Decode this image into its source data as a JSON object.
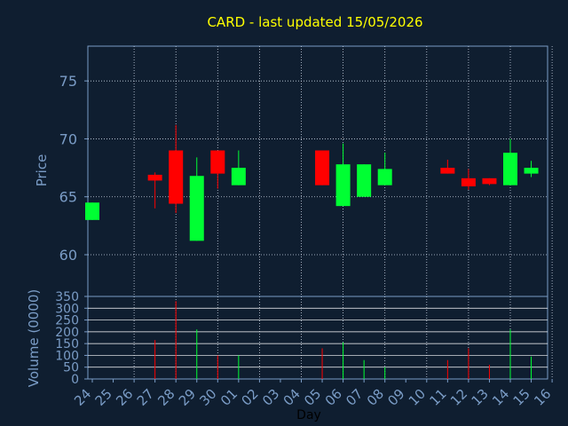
{
  "chart_data": [
    {
      "type": "candlestick",
      "title": "CARD - last updated 15/05/2026",
      "ylabel": "Price",
      "ylim": [
        56.4,
        78
      ],
      "yticks": [
        60,
        65,
        70,
        75
      ],
      "grid": true,
      "colors": {
        "up": "#00ff33",
        "down": "#ff0000",
        "title": "#ffff00",
        "axis": "#7a9cc6",
        "background": "#0f1e30"
      },
      "categories": [
        "24",
        "25",
        "26",
        "27",
        "28",
        "29",
        "30",
        "01",
        "02",
        "03",
        "04",
        "05",
        "06",
        "07",
        "08",
        "09",
        "10",
        "11",
        "12",
        "13",
        "14",
        "15",
        "16"
      ],
      "candles": [
        {
          "day": "24",
          "open": 63.0,
          "close": 64.5,
          "high": 64.5,
          "low": 63.0
        },
        {
          "day": "27",
          "open": 66.9,
          "close": 66.4,
          "high": 67.1,
          "low": 64.0
        },
        {
          "day": "28",
          "open": 69.0,
          "close": 64.4,
          "high": 71.2,
          "low": 63.6
        },
        {
          "day": "29",
          "open": 61.2,
          "close": 66.8,
          "high": 68.4,
          "low": 61.2
        },
        {
          "day": "30",
          "open": 69.0,
          "close": 67.0,
          "high": 69.0,
          "low": 65.7
        },
        {
          "day": "01",
          "open": 66.0,
          "close": 67.5,
          "high": 69.0,
          "low": 66.0
        },
        {
          "day": "05",
          "open": 69.0,
          "close": 66.0,
          "high": 69.0,
          "low": 66.0
        },
        {
          "day": "06",
          "open": 64.2,
          "close": 67.8,
          "high": 69.6,
          "low": 64.2
        },
        {
          "day": "07",
          "open": 65.0,
          "close": 67.8,
          "high": 67.8,
          "low": 65.0
        },
        {
          "day": "08",
          "open": 66.0,
          "close": 67.4,
          "high": 68.8,
          "low": 66.0
        },
        {
          "day": "11",
          "open": 67.5,
          "close": 67.0,
          "high": 68.2,
          "low": 67.0
        },
        {
          "day": "12",
          "open": 66.6,
          "close": 65.9,
          "high": 67.4,
          "low": 65.6
        },
        {
          "day": "13",
          "open": 66.6,
          "close": 66.1,
          "high": 66.6,
          "low": 66.0
        },
        {
          "day": "14",
          "open": 66.0,
          "close": 68.8,
          "high": 70.0,
          "low": 66.0
        },
        {
          "day": "15",
          "open": 67.0,
          "close": 67.5,
          "high": 68.1,
          "low": 66.7
        }
      ]
    },
    {
      "type": "bar",
      "ylabel": "Volume (0000)",
      "xlabel": "Day",
      "ylim": [
        0,
        350
      ],
      "yticks": [
        0,
        50,
        100,
        150,
        200,
        250,
        300,
        350
      ],
      "grid": true,
      "categories": [
        "24",
        "25",
        "26",
        "27",
        "28",
        "29",
        "30",
        "01",
        "02",
        "03",
        "04",
        "05",
        "06",
        "07",
        "08",
        "09",
        "10",
        "11",
        "12",
        "13",
        "14",
        "15",
        "16"
      ],
      "bars": [
        {
          "day": "27",
          "value": 165,
          "direction": "down"
        },
        {
          "day": "28",
          "value": 330,
          "direction": "down"
        },
        {
          "day": "29",
          "value": 210,
          "direction": "up"
        },
        {
          "day": "30",
          "value": 100,
          "direction": "down"
        },
        {
          "day": "01",
          "value": 100,
          "direction": "up"
        },
        {
          "day": "05",
          "value": 130,
          "direction": "down"
        },
        {
          "day": "06",
          "value": 155,
          "direction": "up"
        },
        {
          "day": "07",
          "value": 80,
          "direction": "up"
        },
        {
          "day": "08",
          "value": 50,
          "direction": "up"
        },
        {
          "day": "11",
          "value": 80,
          "direction": "down"
        },
        {
          "day": "12",
          "value": 130,
          "direction": "down"
        },
        {
          "day": "13",
          "value": 60,
          "direction": "down"
        },
        {
          "day": "14",
          "value": 210,
          "direction": "up"
        },
        {
          "day": "15",
          "value": 95,
          "direction": "up"
        }
      ]
    }
  ]
}
